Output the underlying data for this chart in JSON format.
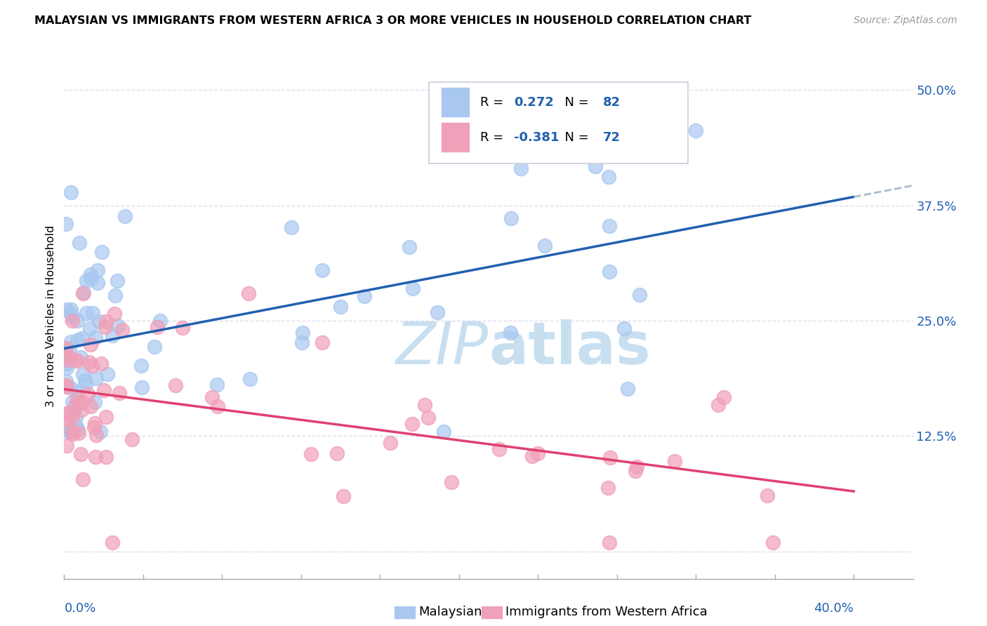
{
  "title": "MALAYSIAN VS IMMIGRANTS FROM WESTERN AFRICA 3 OR MORE VEHICLES IN HOUSEHOLD CORRELATION CHART",
  "source": "Source: ZipAtlas.com",
  "ylabel": "3 or more Vehicles in Household",
  "xlim": [
    0.0,
    0.43
  ],
  "ylim": [
    -0.03,
    0.54
  ],
  "yticks": [
    0.0,
    0.125,
    0.25,
    0.375,
    0.5
  ],
  "ytick_labels": [
    "",
    "12.5%",
    "25.0%",
    "37.5%",
    "50.0%"
  ],
  "r_malaysian": 0.272,
  "n_malaysian": 82,
  "r_western_africa": -0.381,
  "n_western_africa": 72,
  "color_malaysian": "#A8C8F0",
  "color_western_africa": "#F0A0B8",
  "line_color_malaysian": "#2060B0",
  "line_color_western_africa": "#E04070",
  "dashed_line_color": "#AABBCC",
  "background_color": "#FFFFFF",
  "legend_color_blue": "#2060B0",
  "watermark_color": "#C8DFF0",
  "grid_color": "#DDDDEE",
  "tick_color": "#AAAAAA"
}
